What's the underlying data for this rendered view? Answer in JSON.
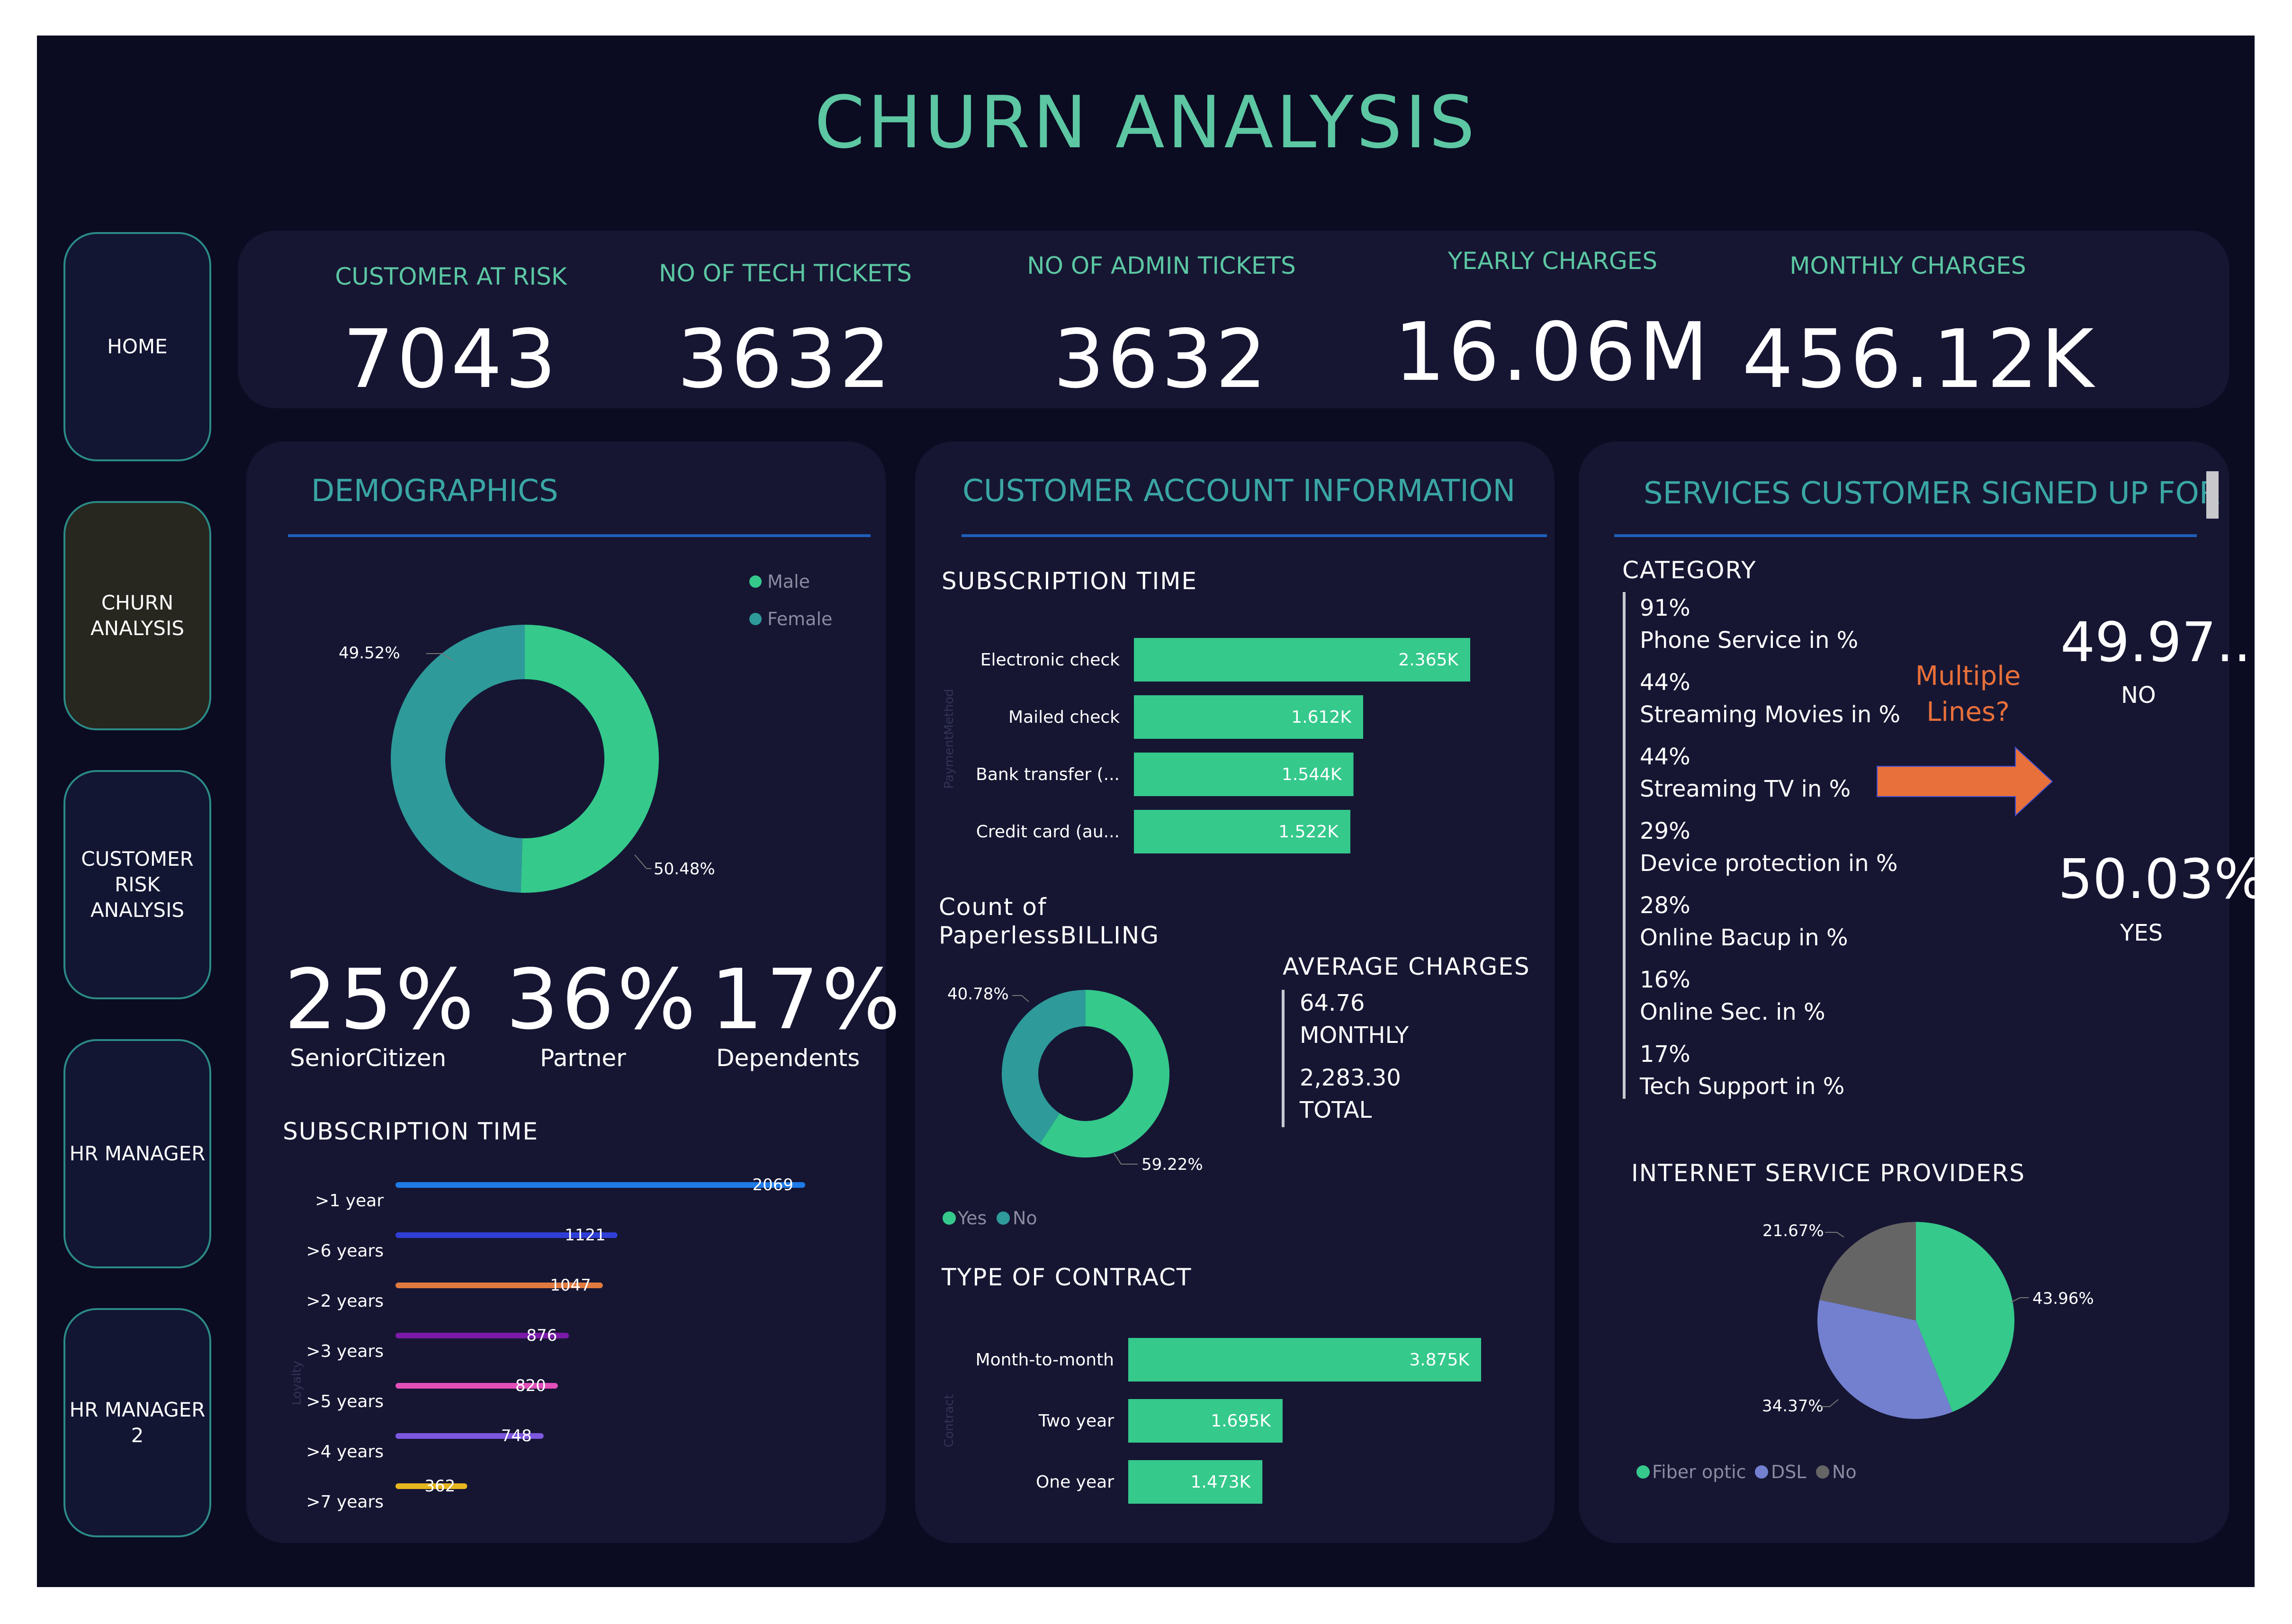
{
  "page": {
    "title": "CHURN ANALYSIS"
  },
  "nav": [
    "HOME",
    "CHURN\nANALYSIS",
    "CUSTOMER\nRISK\nANALYSIS",
    "HR MANAGER",
    "HR MANAGER\n2"
  ],
  "kpis": [
    {
      "label": "CUSTOMER AT RISK",
      "value": "7043"
    },
    {
      "label": "NO OF TECH TICKETS",
      "value": "3632"
    },
    {
      "label": "NO OF ADMIN TICKETS",
      "value": "3632"
    },
    {
      "label": "YEARLY CHARGES",
      "value": "16.06M"
    },
    {
      "label": "MONTHLY CHARGES",
      "value": "456.12K"
    }
  ],
  "demographics": {
    "title": "DEMOGRAPHICS",
    "stats": [
      {
        "value": "25%",
        "label": "SeniorCitizen"
      },
      {
        "value": "36%",
        "label": "Partner"
      },
      {
        "value": "17%",
        "label": "Dependents"
      }
    ],
    "subscription_title": "SUBSCRIPTION TIME",
    "y_axis_label": "Loyalty"
  },
  "account": {
    "title": "CUSTOMER ACCOUNT INFORMATION",
    "subscription_title": "SUBSCRIPTION TIME",
    "y_axis_label": "PaymentMethod",
    "paperless_title_1": "Count of",
    "paperless_title_2": "PaperlessBILLING",
    "avg_title": "AVERAGE CHARGES",
    "avg_monthly_value": "64.76",
    "avg_monthly_label": "MONTHLY",
    "avg_total_value": "2,283.30",
    "avg_total_label": "TOTAL",
    "contract_title": "TYPE OF CONTRACT",
    "contract_axis_label": "Contract"
  },
  "services": {
    "title": "SERVICES CUSTOMER SIGNED UP FOR",
    "category_title": "CATEGORY",
    "categories": [
      {
        "pct": "91%",
        "label": "Phone Service in %"
      },
      {
        "pct": "44%",
        "label": "Streaming Movies in %"
      },
      {
        "pct": "44%",
        "label": "Streaming TV in %"
      },
      {
        "pct": "29%",
        "label": "Device protection in %"
      },
      {
        "pct": "28%",
        "label": "Online Bacup in %"
      },
      {
        "pct": "16%",
        "label": "Online Sec. in %"
      },
      {
        "pct": "17%",
        "label": "Tech Support in %"
      }
    ],
    "multiple_lines_1": "Multiple",
    "multiple_lines_2": "Lines?",
    "no_value": "49.97...",
    "no_label": "NO",
    "yes_value": "50.03%",
    "yes_label": "YES",
    "isp_title": "INTERNET SERVICE PROVIDERS"
  },
  "colors": {
    "accent": "#5cc7a2",
    "green": "#35c98c",
    "teal": "#2e9a9a",
    "bg": "#0b0b22",
    "panel": "#161633",
    "arrow": "#e8703a",
    "multiple_lines": "#e8703a"
  },
  "chart_data": [
    {
      "type": "pie",
      "subtype": "donut",
      "id": "gender",
      "labels": [
        "Male",
        "Female"
      ],
      "values": [
        50.48,
        49.52
      ],
      "data_labels": [
        "50.48%",
        "49.52%"
      ],
      "colors": [
        "#35c98c",
        "#2e9a9a"
      ],
      "legend": "top-right"
    },
    {
      "type": "bar",
      "orientation": "horizontal",
      "id": "loyalty",
      "ylabel": "Loyalty",
      "categories": [
        ">1 year",
        ">6 years",
        ">2 years",
        ">3 years",
        ">5 years",
        ">4 years",
        ">7 years"
      ],
      "values": [
        2069,
        1121,
        1047,
        876,
        820,
        748,
        362
      ],
      "data_labels": [
        "2069",
        "1121",
        "1047",
        "876",
        "820",
        "748",
        "362"
      ],
      "colors": [
        "#1e7be8",
        "#2f3fd6",
        "#e07a3f",
        "#7a1aa8",
        "#e24fb8",
        "#7e57e0",
        "#e6b61e"
      ]
    },
    {
      "type": "bar",
      "orientation": "horizontal",
      "id": "payment_method",
      "ylabel": "PaymentMethod",
      "categories": [
        "Electronic check",
        "Mailed check",
        "Bank transfer (...",
        "Credit card (au..."
      ],
      "values": [
        2365,
        1612,
        1544,
        1522
      ],
      "data_labels": [
        "2.365K",
        "1.612K",
        "1.544K",
        "1.522K"
      ],
      "colors": [
        "#35c98c"
      ]
    },
    {
      "type": "pie",
      "subtype": "donut",
      "id": "paperless",
      "labels": [
        "Yes",
        "No"
      ],
      "values": [
        59.22,
        40.78
      ],
      "data_labels": [
        "59.22%",
        "40.78%"
      ],
      "colors": [
        "#35c98c",
        "#2e9a9a"
      ],
      "legend": "bottom-left"
    },
    {
      "type": "bar",
      "orientation": "horizontal",
      "id": "contract",
      "ylabel": "Contract",
      "categories": [
        "Month-to-month",
        "Two year",
        "One year"
      ],
      "values": [
        3875,
        1695,
        1473
      ],
      "data_labels": [
        "3.875K",
        "1.695K",
        "1.473K"
      ],
      "colors": [
        "#35c98c"
      ]
    },
    {
      "type": "pie",
      "id": "isp",
      "labels": [
        "Fiber optic",
        "DSL",
        "No"
      ],
      "values": [
        43.96,
        34.37,
        21.67
      ],
      "data_labels": [
        "43.96%",
        "34.37%",
        "21.67%"
      ],
      "colors": [
        "#35c98c",
        "#7380cf",
        "#666565"
      ],
      "legend": "bottom-left"
    }
  ]
}
